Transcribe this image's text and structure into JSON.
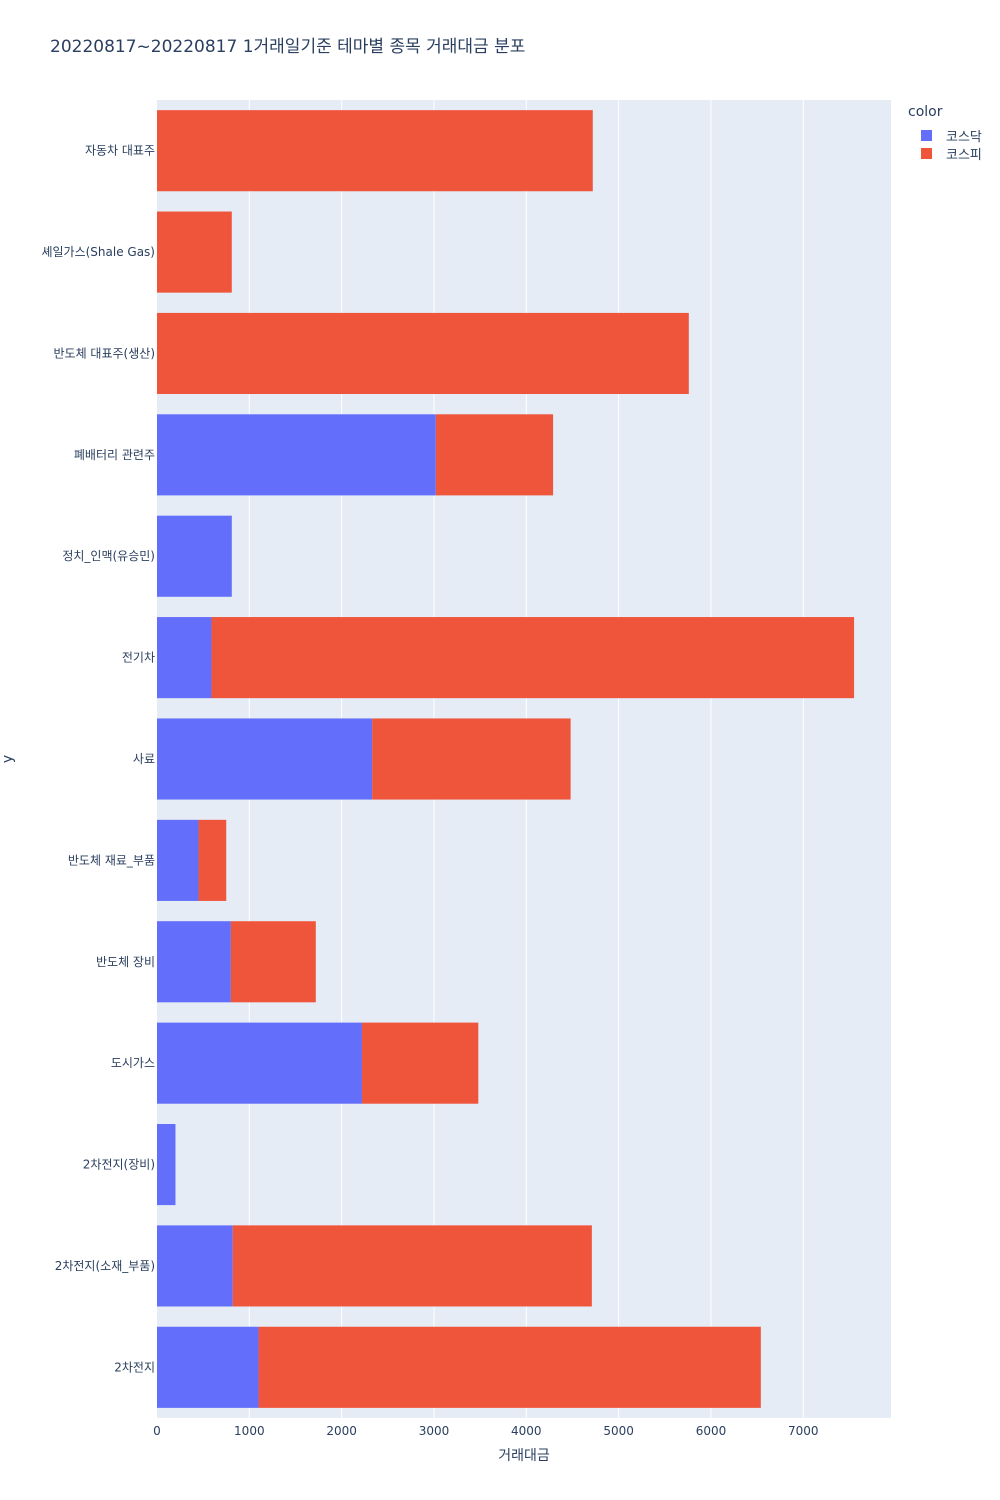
{
  "chart_data": {
    "type": "bar",
    "orientation": "horizontal",
    "barmode": "stack",
    "title": "20220817~20220817 1거래일기준 테마별 종목 거래대금 분포",
    "xlabel": "거래대금",
    "ylabel": "y",
    "xlim": [
      0,
      7950
    ],
    "xticks": [
      0,
      1000,
      2000,
      3000,
      4000,
      5000,
      6000,
      7000
    ],
    "categories": [
      "자동차 대표주",
      "셰일가스(Shale Gas)",
      "반도체 대표주(생산)",
      "폐배터리 관련주",
      "정치_인맥(유승민)",
      "전기차",
      "사료",
      "반도체 재료_부품",
      "반도체 장비",
      "도시가스",
      "2차전지(장비)",
      "2차전지(소재_부품)",
      "2차전지"
    ],
    "series": [
      {
        "name": "코스닥",
        "color": "#636efa",
        "values": [
          0,
          0,
          0,
          3020,
          810,
          590,
          2330,
          450,
          800,
          2220,
          200,
          820,
          1100
        ]
      },
      {
        "name": "코스피",
        "color": "#ef553b",
        "values": [
          4720,
          810,
          5760,
          1270,
          0,
          6960,
          2150,
          300,
          920,
          1260,
          0,
          3890,
          5440
        ]
      }
    ],
    "legend": {
      "title": "color",
      "position": "top-right"
    }
  }
}
